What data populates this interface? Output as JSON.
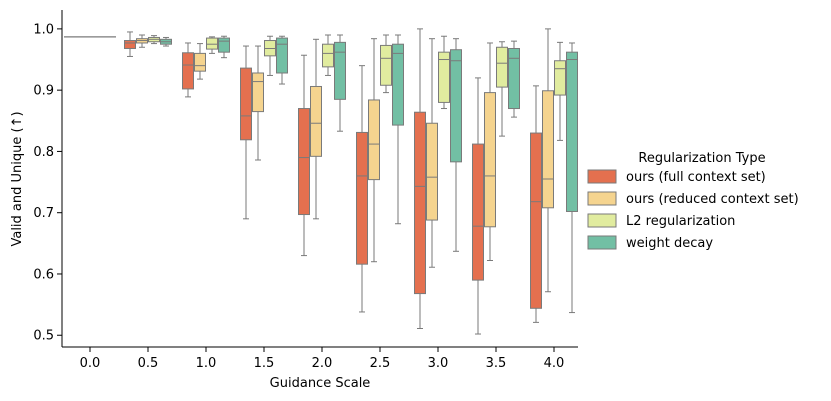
{
  "chart_data": {
    "type": "boxplot",
    "xlabel": "Guidance Scale",
    "ylabel": "Valid and Unique (↑)",
    "ylim": [
      0.48,
      1.03
    ],
    "yticks": [
      "0.5",
      "0.6",
      "0.7",
      "0.8",
      "0.9",
      "1.0"
    ],
    "categories": [
      "0.0",
      "0.5",
      "1.0",
      "1.5",
      "2.0",
      "2.5",
      "3.0",
      "3.5",
      "4.0"
    ],
    "legend": {
      "title": "Regularization Type",
      "position": "center-right"
    },
    "series": [
      {
        "name": "ours (full context set)",
        "color": "#e4704f",
        "boxes": [
          null,
          {
            "whislo": 0.955,
            "q1": 0.968,
            "med": 0.977,
            "q3": 0.981,
            "whishi": 0.995
          },
          {
            "whislo": 0.889,
            "q1": 0.902,
            "med": 0.941,
            "q3": 0.961,
            "whishi": 0.977
          },
          {
            "whislo": 0.69,
            "q1": 0.819,
            "med": 0.858,
            "q3": 0.936,
            "whishi": 0.972
          },
          {
            "whislo": 0.63,
            "q1": 0.697,
            "med": 0.79,
            "q3": 0.87,
            "whishi": 0.957
          },
          {
            "whislo": 0.538,
            "q1": 0.616,
            "med": 0.76,
            "q3": 0.831,
            "whishi": 0.94
          },
          {
            "whislo": 0.511,
            "q1": 0.568,
            "med": 0.743,
            "q3": 0.864,
            "whishi": 1.0
          },
          {
            "whislo": 0.502,
            "q1": 0.59,
            "med": 0.678,
            "q3": 0.812,
            "whishi": 0.92
          },
          {
            "whislo": 0.521,
            "q1": 0.544,
            "med": 0.718,
            "q3": 0.83,
            "whishi": 0.907
          }
        ]
      },
      {
        "name": "ours (reduced context set)",
        "color": "#f5d48f",
        "boxes": [
          null,
          {
            "whislo": 0.97,
            "q1": 0.977,
            "med": 0.981,
            "q3": 0.984,
            "whishi": 0.99
          },
          {
            "whislo": 0.918,
            "q1": 0.931,
            "med": 0.94,
            "q3": 0.96,
            "whishi": 0.976
          },
          {
            "whislo": 0.786,
            "q1": 0.865,
            "med": 0.914,
            "q3": 0.928,
            "whishi": 0.972
          },
          {
            "whislo": 0.69,
            "q1": 0.792,
            "med": 0.846,
            "q3": 0.906,
            "whishi": 0.983
          },
          {
            "whislo": 0.62,
            "q1": 0.754,
            "med": 0.812,
            "q3": 0.884,
            "whishi": 0.984
          },
          {
            "whislo": 0.611,
            "q1": 0.688,
            "med": 0.758,
            "q3": 0.846,
            "whishi": 0.984
          },
          {
            "whislo": 0.622,
            "q1": 0.677,
            "med": 0.76,
            "q3": 0.896,
            "whishi": 0.977
          },
          {
            "whislo": 0.571,
            "q1": 0.708,
            "med": 0.755,
            "q3": 0.899,
            "whishi": 1.0
          }
        ]
      },
      {
        "name": "L2 regularization",
        "color": "#e1ec9f",
        "boxes": [
          null,
          {
            "whislo": 0.976,
            "q1": 0.979,
            "med": 0.983,
            "q3": 0.986,
            "whishi": 0.989
          },
          {
            "whislo": 0.96,
            "q1": 0.967,
            "med": 0.975,
            "q3": 0.985,
            "whishi": 0.987
          },
          {
            "whislo": 0.924,
            "q1": 0.956,
            "med": 0.968,
            "q3": 0.981,
            "whishi": 0.988
          },
          {
            "whislo": 0.924,
            "q1": 0.938,
            "med": 0.96,
            "q3": 0.975,
            "whishi": 0.99
          },
          {
            "whislo": 0.896,
            "q1": 0.908,
            "med": 0.952,
            "q3": 0.973,
            "whishi": 0.99
          },
          {
            "whislo": 0.87,
            "q1": 0.88,
            "med": 0.95,
            "q3": 0.962,
            "whishi": 0.988
          },
          {
            "whislo": 0.825,
            "q1": 0.905,
            "med": 0.944,
            "q3": 0.97,
            "whishi": 0.979
          },
          {
            "whislo": 0.818,
            "q1": 0.892,
            "med": 0.935,
            "q3": 0.948,
            "whishi": 0.978
          }
        ]
      },
      {
        "name": "weight decay",
        "color": "#72bfa4",
        "boxes": [
          null,
          {
            "whislo": 0.972,
            "q1": 0.975,
            "med": 0.979,
            "q3": 0.983,
            "whishi": 0.986
          },
          {
            "whislo": 0.953,
            "q1": 0.962,
            "med": 0.98,
            "q3": 0.985,
            "whishi": 0.988
          },
          {
            "whislo": 0.91,
            "q1": 0.928,
            "med": 0.975,
            "q3": 0.985,
            "whishi": 0.988
          },
          {
            "whislo": 0.833,
            "q1": 0.885,
            "med": 0.962,
            "q3": 0.978,
            "whishi": 0.99
          },
          {
            "whislo": 0.682,
            "q1": 0.843,
            "med": 0.96,
            "q3": 0.975,
            "whishi": 0.99
          },
          {
            "whislo": 0.637,
            "q1": 0.783,
            "med": 0.948,
            "q3": 0.966,
            "whishi": 0.984
          },
          {
            "whislo": 0.856,
            "q1": 0.87,
            "med": 0.952,
            "q3": 0.968,
            "whishi": 0.98
          },
          {
            "whislo": 0.537,
            "q1": 0.702,
            "med": 0.95,
            "q3": 0.962,
            "whishi": 0.977
          }
        ]
      }
    ],
    "baseline": {
      "category": "0.0",
      "value": 0.987
    }
  }
}
